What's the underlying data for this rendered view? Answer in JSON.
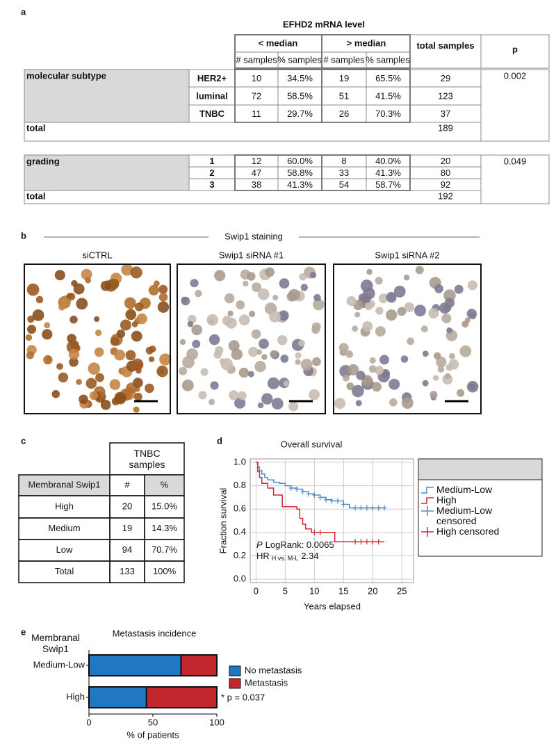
{
  "panel_a": {
    "label": "a",
    "header": "EFHD2 mRNA level",
    "groups": [
      "< median",
      "> median"
    ],
    "subheaders": [
      "# samples",
      "% samples",
      "# samples",
      "% samples"
    ],
    "total_header": "total samples",
    "p_header": "p",
    "subtype": {
      "name": "molecular subtype",
      "rows": [
        [
          "HER2+",
          "10",
          "34.5%",
          "19",
          "65.5%",
          "29"
        ],
        [
          "luminal",
          "72",
          "58.5%",
          "51",
          "41.5%",
          "123"
        ],
        [
          "TNBC",
          "11",
          "29.7%",
          "26",
          "70.3%",
          "37"
        ]
      ],
      "total_label": "total",
      "total": "189",
      "p": "0.002"
    },
    "grading": {
      "name": "grading",
      "rows": [
        [
          "1",
          "12",
          "60.0%",
          "8",
          "40.0%",
          "20"
        ],
        [
          "2",
          "47",
          "58.8%",
          "33",
          "41.3%",
          "80"
        ],
        [
          "3",
          "38",
          "41.3%",
          "54",
          "58.7%",
          "92"
        ]
      ],
      "total_label": "total",
      "total": "192",
      "p": "0.049"
    }
  },
  "panel_b": {
    "label": "b",
    "title": "Swip1 staining",
    "images": [
      "siCTRL",
      "Swip1 siRNA #1",
      "Swip1 siRNA #2"
    ]
  },
  "panel_c": {
    "label": "c",
    "header": "TNBC samples",
    "columns": [
      "Membranal Swip1",
      "#",
      "%"
    ],
    "rows": [
      [
        "High",
        "20",
        "15.0%"
      ],
      [
        "Medium",
        "19",
        "14.3%"
      ],
      [
        "Low",
        "94",
        "70.7%"
      ],
      [
        "Total",
        "133",
        "100%"
      ]
    ]
  },
  "chart_data": [
    {
      "type": "line",
      "panel_label": "d",
      "title": "Overall survival",
      "xlabel": "Years elapsed",
      "ylabel": "Fraction survival",
      "drawstyle": "steps-post",
      "xlim": [
        -1,
        27
      ],
      "ylim": [
        -0.03,
        1.03
      ],
      "xticks": [
        0,
        5,
        10,
        15,
        20,
        25
      ],
      "yticks": [
        {
          "value": 0,
          "label": "0.0"
        },
        0.2,
        0.4,
        0.6,
        0.8,
        {
          "value": 1,
          "label": "1.0"
        }
      ],
      "grid": true,
      "series": [
        {
          "name": "Medium-Low",
          "color": "#4a8bc9",
          "x": [
            0,
            0.3,
            0.6,
            1,
            1.5,
            2,
            3,
            4,
            5,
            6,
            7,
            8,
            9,
            10,
            11,
            12,
            13,
            15,
            16,
            22.3
          ],
          "values": [
            1,
            0.96,
            0.93,
            0.9,
            0.87,
            0.85,
            0.83,
            0.82,
            0.8,
            0.78,
            0.77,
            0.75,
            0.73,
            0.72,
            0.7,
            0.68,
            0.67,
            0.64,
            0.61,
            0.61
          ]
        },
        {
          "name": "High",
          "color": "#d7262b",
          "x": [
            0,
            0.3,
            0.6,
            1,
            2,
            3,
            4.5,
            7,
            7.5,
            8,
            8.5,
            9.5,
            13.5,
            22
          ],
          "values": [
            1,
            0.92,
            0.87,
            0.82,
            0.78,
            0.72,
            0.62,
            0.6,
            0.52,
            0.47,
            0.43,
            0.4,
            0.32,
            0.32
          ]
        },
        {
          "name": "Medium-Low censored",
          "color": "#4a8bc9",
          "marker": "+",
          "x": [
            6,
            7,
            8,
            9,
            10,
            11,
            12,
            13,
            14,
            15,
            17,
            18,
            19,
            20,
            21,
            22
          ],
          "values": [
            0.78,
            0.77,
            0.75,
            0.73,
            0.72,
            0.7,
            0.68,
            0.67,
            0.67,
            0.64,
            0.61,
            0.61,
            0.61,
            0.61,
            0.61,
            0.61
          ]
        },
        {
          "name": "High censored",
          "color": "#d7262b",
          "marker": "+",
          "x": [
            10,
            11,
            17,
            18,
            19,
            20,
            21
          ],
          "values": [
            0.4,
            0.4,
            0.32,
            0.32,
            0.32,
            0.32,
            0.32
          ]
        }
      ],
      "annotations": [
        {
          "italic": "P",
          "text": "LogRank: 0.0065"
        },
        {
          "text": "HR",
          "subscript": "H vs. M-L",
          "value": "2.34"
        }
      ]
    },
    {
      "type": "bar",
      "orientation": "horizontal",
      "stacked": true,
      "panel_label": "e",
      "title": "Metastasis incidence",
      "ylabel": "Membranal Swip1",
      "xlabel": "% of patients",
      "categories": [
        "Medium-Low",
        "High"
      ],
      "series": [
        {
          "name": "No metastasis",
          "color": "#1f78c1",
          "values": [
            72,
            45
          ]
        },
        {
          "name": "Metastasis",
          "color": "#c1272d",
          "values": [
            28,
            55
          ]
        }
      ],
      "xlim": [
        0,
        100
      ],
      "xticks": [
        0,
        50,
        100
      ],
      "annotations": [
        "* p = 0.037"
      ]
    }
  ]
}
